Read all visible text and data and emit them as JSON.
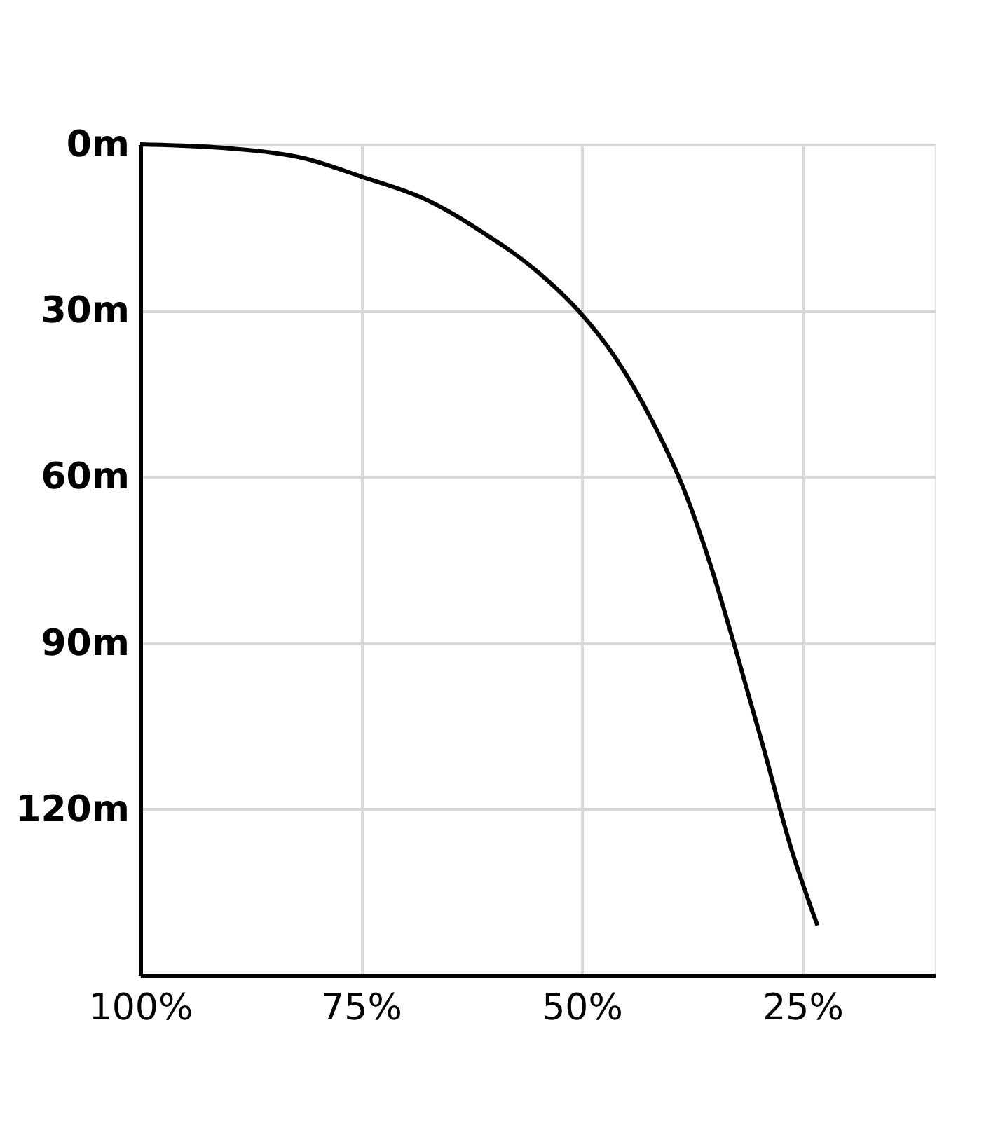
{
  "chart_data": {
    "type": "line",
    "x": [
      100,
      89.4,
      81.5,
      75,
      67.6,
      61.4,
      55,
      50,
      46.4,
      42,
      38.5,
      35.4,
      32.6,
      29.4,
      26.3,
      23.3
    ],
    "series": [
      {
        "color": "#000000",
        "values": [
          0,
          0.8,
          2.5,
          5.8,
          10,
          15.7,
          23,
          30.7,
          38,
          50,
          62,
          76,
          91,
          109,
          127,
          141
        ]
      }
    ],
    "xlim": [
      100,
      10
    ],
    "ylim": [
      150,
      0
    ],
    "xticks": [
      {
        "value": 100,
        "label": "100%"
      },
      {
        "value": 75,
        "label": "75%"
      },
      {
        "value": 50,
        "label": "50%"
      },
      {
        "value": 25,
        "label": "25%"
      }
    ],
    "yticks": [
      {
        "value": 0,
        "label": "0m"
      },
      {
        "value": 30,
        "label": "30m"
      },
      {
        "value": 60,
        "label": "60m"
      },
      {
        "value": 90,
        "label": "90m"
      },
      {
        "value": 120,
        "label": "120m"
      }
    ],
    "grid": true,
    "marker": "none",
    "line_style": "solid"
  }
}
